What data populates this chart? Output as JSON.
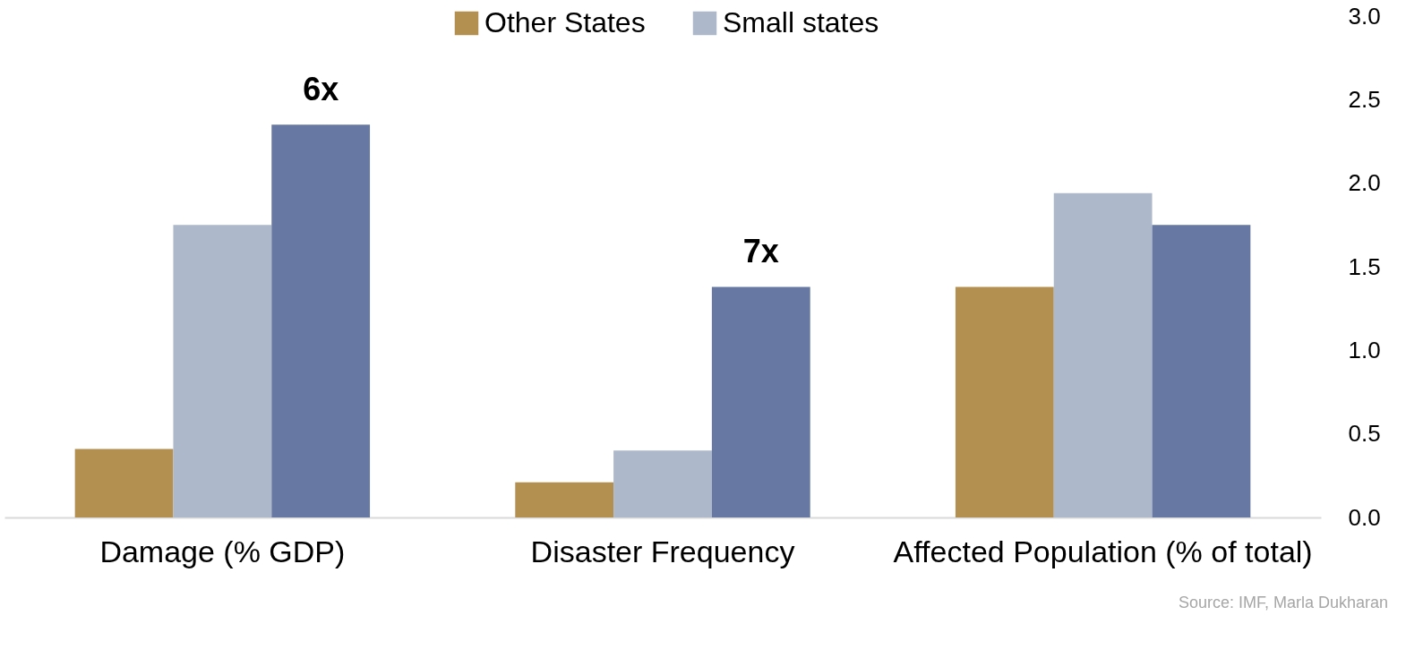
{
  "chart_data": {
    "type": "bar",
    "categories": [
      "Damage (% GDP)",
      "Disaster Frequency",
      "Affected Population (% of total)"
    ],
    "series": [
      {
        "name": "Other States",
        "color": "#b38f50",
        "values": [
          0.41,
          0.21,
          1.38
        ]
      },
      {
        "name": "Small states",
        "color": "#adb9cb",
        "values": [
          1.75,
          0.4,
          1.94
        ]
      },
      {
        "color": "#6779a3",
        "values": [
          2.35,
          1.38,
          1.75
        ]
      }
    ],
    "ylim": [
      0,
      3.0
    ],
    "yticks": [
      {
        "value": 0,
        "label": "0.0"
      },
      {
        "value": 0.5,
        "label": "0.5"
      },
      {
        "value": 1,
        "label": "1.0"
      },
      {
        "value": 1.5,
        "label": "1.5"
      },
      {
        "value": 2,
        "label": "2.0"
      },
      {
        "value": 2.5,
        "label": "2.5"
      },
      {
        "value": 3,
        "label": "3.0"
      }
    ],
    "grid": false,
    "legend": "top",
    "annotations": [
      "6x",
      "7x",
      "Source: IMF, Marla Dukharan"
    ]
  }
}
